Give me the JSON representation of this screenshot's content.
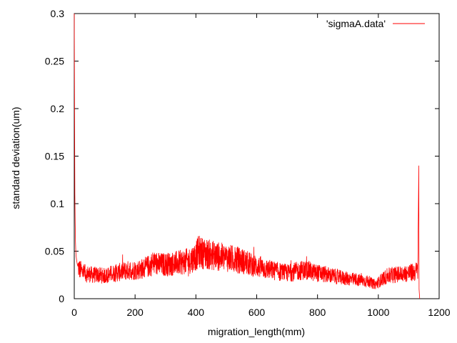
{
  "chart_data": {
    "type": "line",
    "xlabel": "migration_length(mm)",
    "ylabel": "standard deviation(um)",
    "xlim": [
      0,
      1200
    ],
    "ylim": [
      0,
      0.3
    ],
    "x_ticks": [
      0,
      200,
      400,
      600,
      800,
      1000,
      1200
    ],
    "y_ticks": [
      0,
      0.05,
      0.1,
      0.15,
      0.2,
      0.25,
      0.3
    ],
    "x_tick_labels": [
      "0",
      "200",
      "400",
      "600",
      "800",
      "1000",
      "1200"
    ],
    "y_tick_labels": [
      "0",
      "0.05",
      "0.1",
      "0.15",
      "0.2",
      "0.25",
      "0.3"
    ],
    "grid": false,
    "legend_position": "top-right",
    "series": [
      {
        "name": "'sigmaA.data'",
        "color": "#ff0000",
        "x": [
          0,
          1,
          2,
          3,
          4,
          5,
          6,
          8,
          10,
          12,
          15,
          20,
          30,
          40,
          50,
          60,
          80,
          100,
          120,
          150,
          180,
          200,
          230,
          250,
          260,
          280,
          300,
          330,
          350,
          380,
          400,
          410,
          420,
          450,
          480,
          500,
          520,
          550,
          580,
          600,
          620,
          650,
          680,
          700,
          720,
          750,
          770,
          780,
          800,
          820,
          850,
          880,
          900,
          920,
          950,
          970,
          980,
          990,
          1000,
          1010,
          1030,
          1050,
          1080,
          1100,
          1120,
          1130,
          1133,
          1134,
          1135,
          1136
        ],
        "y": [
          0.3,
          0.2,
          0.11,
          0.08,
          0.06,
          0.05,
          0.045,
          0.04,
          0.036,
          0.034,
          0.032,
          0.03,
          0.028,
          0.026,
          0.026,
          0.025,
          0.025,
          0.024,
          0.026,
          0.028,
          0.03,
          0.03,
          0.032,
          0.035,
          0.038,
          0.036,
          0.036,
          0.037,
          0.038,
          0.04,
          0.045,
          0.05,
          0.048,
          0.046,
          0.044,
          0.043,
          0.042,
          0.04,
          0.036,
          0.034,
          0.032,
          0.03,
          0.028,
          0.027,
          0.028,
          0.03,
          0.03,
          0.028,
          0.027,
          0.026,
          0.024,
          0.022,
          0.021,
          0.02,
          0.019,
          0.018,
          0.016,
          0.015,
          0.017,
          0.02,
          0.024,
          0.025,
          0.026,
          0.027,
          0.028,
          0.03,
          0.14,
          0.01,
          0.005,
          0.0
        ]
      }
    ]
  }
}
